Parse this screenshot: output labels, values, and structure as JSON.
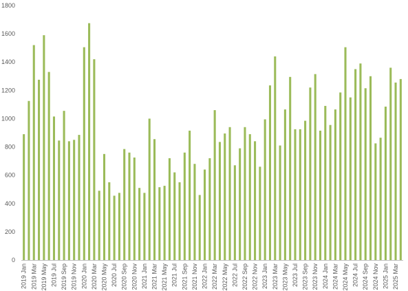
{
  "chart_data": {
    "type": "bar",
    "title": "",
    "xlabel": "",
    "ylabel": "",
    "ylim": [
      0,
      1800
    ],
    "yticks": [
      0,
      200,
      400,
      600,
      800,
      1000,
      1200,
      1400,
      1600,
      1800
    ],
    "grid": false,
    "legend": "none",
    "bar_color": "#9bbb59",
    "categories": [
      "2019 Jan",
      "2019 Feb",
      "2019 Mar",
      "2019 Apr",
      "2019 May",
      "2019 Jun",
      "2019 Jul",
      "2019 Aug",
      "2019 Sep",
      "2019 Oct",
      "2019 Nov",
      "2019 Dec",
      "2020 Jan",
      "2020 Feb",
      "2020 Mar",
      "2020 Apr",
      "2020 May",
      "2020 Jun",
      "2020 Jul",
      "2020 Aug",
      "2020 Sep",
      "2020 Oct",
      "2020 Nov",
      "2020 Dec",
      "2021 Jan",
      "2021 Feb",
      "2021 Mar",
      "2021 Apr",
      "2021 May",
      "2021 Jun",
      "2021 Jul",
      "2021 Aug",
      "2021 Sep",
      "2021 Oct",
      "2021 Nov",
      "2021 Dec",
      "2022 Jan",
      "2022 Feb",
      "2022 Mar",
      "2022 Apr",
      "2022 May",
      "2022 Jun",
      "2022 Jul",
      "2022 Aug",
      "2022 Sep",
      "2022 Oct",
      "2022 Nov",
      "2022 Dec",
      "2023 Jan",
      "2023 Feb",
      "2023 Mar",
      "2023 Apr",
      "2023 May",
      "2023 Jun",
      "2023 Jul",
      "2023 Aug",
      "2023 Sep",
      "2023 Oct",
      "2023 Nov",
      "2023 Dec",
      "2024 Jan",
      "2024 Feb",
      "2024 Mar",
      "2024 Apr",
      "2024 May",
      "2024 Jun",
      "2024 Jul",
      "2024 Aug",
      "2024 Sep",
      "2024 Oct",
      "2024 Nov",
      "2024 Dec",
      "2025 Jan",
      "2025 Feb",
      "2025 Mar",
      "2025 Apr"
    ],
    "tick_categories": [
      "2019 Jan",
      "2019 Mar",
      "2019 May",
      "2019 Jul",
      "2019 Sep",
      "2019 Nov",
      "2020 Jan",
      "2020 Mar",
      "2020 May",
      "2020 Jul",
      "2020 Sep",
      "2020 Nov",
      "2021 Jan",
      "2021 Mar",
      "2021 May",
      "2021 Jul",
      "2021 Sep",
      "2021 Nov",
      "2022 Jan",
      "2022 Mar",
      "2022 May",
      "2022 Jul",
      "2022 Sep",
      "2022 Nov",
      "2023 Jan",
      "2023 Mar",
      "2023 May",
      "2023 Jul",
      "2023 Sep",
      "2023 Nov",
      "2024 Jan",
      "2024 Mar",
      "2024 May",
      "2024 Jul",
      "2024 Sep",
      "2024 Nov",
      "2025 Jan",
      "2025 Mar"
    ],
    "values": [
      890,
      1125,
      1520,
      1275,
      1590,
      1330,
      1015,
      845,
      1055,
      840,
      850,
      885,
      1505,
      1675,
      1420,
      490,
      750,
      550,
      455,
      475,
      785,
      760,
      725,
      510,
      475,
      1000,
      855,
      515,
      525,
      720,
      620,
      550,
      760,
      915,
      680,
      460,
      640,
      720,
      1060,
      835,
      895,
      940,
      670,
      790,
      940,
      890,
      840,
      660,
      995,
      1235,
      1440,
      810,
      1065,
      1295,
      925,
      925,
      985,
      1220,
      1315,
      915,
      1090,
      955,
      1065,
      1185,
      1505,
      1150,
      1350,
      1390,
      1215,
      1300,
      825,
      865,
      1085,
      1360,
      1255,
      1280
    ]
  }
}
